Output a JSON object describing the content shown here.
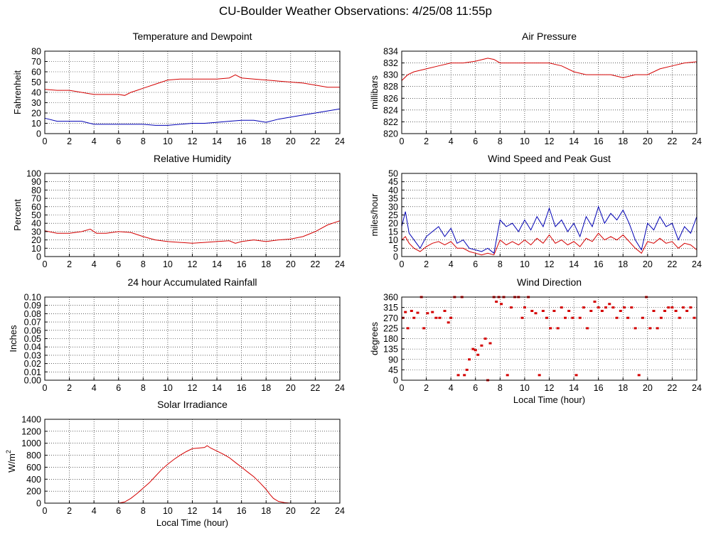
{
  "page_title": "CU-Boulder Weather Observations: 4/25/08 11:55p",
  "colors": {
    "red": "#d40000",
    "blue": "#0000b4"
  },
  "chart_data": [
    {
      "id": "temp",
      "type": "line",
      "title": "Temperature and Dewpoint",
      "ylabel": "Fahrenheit",
      "xlabel": "",
      "xlim": [
        0,
        24
      ],
      "ylim": [
        0,
        80
      ],
      "xticks": [
        0,
        2,
        4,
        6,
        8,
        10,
        12,
        14,
        16,
        18,
        20,
        22,
        24
      ],
      "yticks": [
        0,
        10,
        20,
        30,
        40,
        50,
        60,
        70,
        80
      ],
      "grid": true,
      "series": [
        {
          "color": "#d40000",
          "x": [
            0,
            1,
            2,
            3,
            4,
            5,
            6,
            6.5,
            7,
            7.5,
            8,
            9,
            10,
            11,
            12,
            13,
            14,
            15,
            15.5,
            16,
            17,
            18,
            19,
            20,
            21,
            22,
            23,
            24
          ],
          "y": [
            43,
            42,
            42,
            40,
            38,
            38,
            38,
            37,
            40,
            42,
            44,
            48,
            52,
            53,
            53,
            53,
            53,
            54,
            57,
            54,
            53,
            52,
            51,
            50,
            49,
            47,
            45,
            45
          ]
        },
        {
          "color": "#0000b4",
          "x": [
            0,
            1,
            2,
            3,
            4,
            5,
            6,
            7,
            8,
            9,
            10,
            11,
            12,
            13,
            14,
            15,
            16,
            17,
            18,
            19,
            20,
            21,
            22,
            23,
            24
          ],
          "y": [
            15,
            12,
            12,
            12,
            9,
            9,
            9,
            9,
            9,
            8,
            8,
            9,
            10,
            10,
            11,
            12,
            13,
            13,
            11,
            14,
            16,
            18,
            20,
            22,
            24
          ]
        }
      ]
    },
    {
      "id": "pressure",
      "type": "line",
      "title": "Air Pressure",
      "ylabel": "millibars",
      "xlabel": "",
      "xlim": [
        0,
        24
      ],
      "ylim": [
        820,
        834
      ],
      "xticks": [
        0,
        2,
        4,
        6,
        8,
        10,
        12,
        14,
        16,
        18,
        20,
        22,
        24
      ],
      "yticks": [
        820,
        822,
        824,
        826,
        828,
        830,
        832,
        834
      ],
      "grid": true,
      "series": [
        {
          "color": "#d40000",
          "x": [
            0,
            0.5,
            1,
            2,
            3,
            4,
            5,
            6,
            7,
            7.5,
            8,
            9,
            10,
            11,
            12,
            13,
            14,
            15,
            16,
            17,
            18,
            19,
            20,
            21,
            22,
            23,
            24
          ],
          "y": [
            829,
            830,
            830.5,
            831,
            831.5,
            832,
            832,
            832.3,
            832.8,
            832.6,
            832,
            832,
            832,
            832,
            832,
            831.5,
            830.5,
            830,
            830,
            830,
            829.5,
            830,
            830,
            831,
            831.5,
            832,
            832.2
          ]
        }
      ]
    },
    {
      "id": "humidity",
      "type": "line",
      "title": "Relative Humidity",
      "ylabel": "Percent",
      "xlabel": "",
      "xlim": [
        0,
        24
      ],
      "ylim": [
        0,
        100
      ],
      "xticks": [
        0,
        2,
        4,
        6,
        8,
        10,
        12,
        14,
        16,
        18,
        20,
        22,
        24
      ],
      "yticks": [
        0,
        10,
        20,
        30,
        40,
        50,
        60,
        70,
        80,
        90,
        100
      ],
      "grid": true,
      "series": [
        {
          "color": "#d40000",
          "x": [
            0,
            1,
            2,
            3,
            3.7,
            4.2,
            5,
            6,
            7,
            8,
            9,
            10,
            11,
            12,
            13,
            14,
            15,
            15.5,
            16,
            17,
            18,
            19,
            20,
            21,
            22,
            23,
            24
          ],
          "y": [
            31,
            28,
            28,
            30,
            33,
            28,
            28,
            30,
            29,
            24,
            20,
            18,
            17,
            16,
            17,
            18,
            19,
            16,
            18,
            20,
            18,
            20,
            21,
            24,
            30,
            38,
            43
          ]
        }
      ]
    },
    {
      "id": "wind",
      "type": "line",
      "title": "Wind Speed and Peak Gust",
      "ylabel": "miles/hour",
      "xlabel": "",
      "xlim": [
        0,
        24
      ],
      "ylim": [
        0,
        50
      ],
      "xticks": [
        0,
        2,
        4,
        6,
        8,
        10,
        12,
        14,
        16,
        18,
        20,
        22,
        24
      ],
      "yticks": [
        0,
        5,
        10,
        15,
        20,
        25,
        30,
        35,
        40,
        45,
        50
      ],
      "grid": true,
      "series": [
        {
          "color": "#0000b4",
          "x": [
            0,
            0.3,
            0.6,
            1,
            1.5,
            2,
            2.5,
            3,
            3.5,
            4,
            4.5,
            5,
            5.5,
            6,
            6.5,
            7,
            7.5,
            8,
            8.5,
            9,
            9.5,
            10,
            10.5,
            11,
            11.5,
            12,
            12.5,
            13,
            13.5,
            14,
            14.5,
            15,
            15.5,
            16,
            16.5,
            17,
            17.5,
            18,
            18.5,
            19,
            19.5,
            20,
            20.5,
            21,
            21.5,
            22,
            22.5,
            23,
            23.5,
            24
          ],
          "y": [
            18,
            27,
            14,
            10,
            5,
            12,
            15,
            18,
            12,
            17,
            8,
            10,
            5,
            4,
            3,
            5,
            2,
            22,
            18,
            20,
            15,
            22,
            16,
            24,
            18,
            29,
            18,
            22,
            15,
            20,
            12,
            24,
            18,
            30,
            20,
            26,
            22,
            28,
            20,
            10,
            4,
            20,
            16,
            24,
            18,
            20,
            10,
            18,
            14,
            24
          ]
        },
        {
          "color": "#d40000",
          "x": [
            0,
            0.3,
            0.6,
            1,
            1.5,
            2,
            2.5,
            3,
            3.5,
            4,
            4.5,
            5,
            5.5,
            6,
            6.5,
            7,
            7.5,
            8,
            8.5,
            9,
            9.5,
            10,
            10.5,
            11,
            11.5,
            12,
            12.5,
            13,
            13.5,
            14,
            14.5,
            15,
            15.5,
            16,
            16.5,
            17,
            17.5,
            18,
            18.5,
            19,
            19.5,
            20,
            20.5,
            21,
            21.5,
            22,
            22.5,
            23,
            23.5,
            24
          ],
          "y": [
            10,
            12,
            8,
            5,
            3,
            6,
            8,
            9,
            7,
            9,
            5,
            5,
            3,
            2,
            1,
            2,
            1,
            10,
            7,
            9,
            7,
            10,
            7,
            11,
            8,
            13,
            8,
            10,
            7,
            9,
            6,
            11,
            9,
            14,
            10,
            12,
            10,
            13,
            9,
            5,
            2,
            9,
            8,
            11,
            8,
            9,
            5,
            8,
            7,
            4
          ]
        }
      ]
    },
    {
      "id": "rain",
      "type": "line",
      "title": "24 hour Accumulated Rainfall",
      "ylabel": "Inches",
      "xlabel": "",
      "xlim": [
        0,
        24
      ],
      "ylim": [
        0,
        0.1
      ],
      "xticks": [
        0,
        2,
        4,
        6,
        8,
        10,
        12,
        14,
        16,
        18,
        20,
        22,
        24
      ],
      "yticks": [
        0,
        0.01,
        0.02,
        0.03,
        0.04,
        0.05,
        0.06,
        0.07,
        0.08,
        0.09,
        0.1
      ],
      "ytick_labels": [
        "0.00",
        "0.01",
        "0.02",
        "0.03",
        "0.04",
        "0.05",
        "0.06",
        "0.07",
        "0.08",
        "0.09",
        "0.10"
      ],
      "grid": true,
      "series": [
        {
          "color": "#d40000",
          "x": [
            0,
            24
          ],
          "y": [
            0,
            0
          ]
        }
      ]
    },
    {
      "id": "winddir",
      "type": "scatter",
      "title": "Wind Direction",
      "ylabel": "degrees",
      "xlabel": "Local Time (hour)",
      "xlim": [
        0,
        24
      ],
      "ylim": [
        0,
        360
      ],
      "xticks": [
        0,
        2,
        4,
        6,
        8,
        10,
        12,
        14,
        16,
        18,
        20,
        22,
        24
      ],
      "yticks": [
        0,
        45,
        90,
        135,
        180,
        225,
        270,
        315,
        360
      ],
      "grid": true,
      "series": [
        {
          "color": "#d40000",
          "x": [
            0.1,
            0.3,
            0.5,
            0.8,
            1.0,
            1.3,
            1.6,
            1.8,
            2.1,
            2.5,
            2.8,
            3.1,
            3.5,
            3.8,
            4.0,
            4.3,
            4.6,
            4.9,
            5.1,
            5.3,
            5.5,
            5.8,
            6.0,
            6.2,
            6.5,
            6.8,
            7.0,
            7.2,
            7.5,
            7.7,
            7.9,
            8.1,
            8.3,
            8.6,
            8.9,
            9.2,
            9.5,
            9.8,
            10.0,
            10.3,
            10.6,
            10.9,
            11.2,
            11.5,
            11.8,
            12.1,
            12.4,
            12.7,
            13.0,
            13.3,
            13.6,
            13.9,
            14.2,
            14.5,
            14.8,
            15.1,
            15.4,
            15.7,
            16.0,
            16.3,
            16.6,
            16.9,
            17.2,
            17.5,
            17.8,
            18.1,
            18.4,
            18.7,
            19.0,
            19.3,
            19.6,
            19.9,
            20.2,
            20.5,
            20.8,
            21.1,
            21.4,
            21.7,
            22.0,
            22.3,
            22.6,
            22.9,
            23.2,
            23.5,
            23.8
          ],
          "y": [
            270,
            295,
            225,
            300,
            270,
            292,
            360,
            225,
            290,
            295,
            270,
            270,
            300,
            250,
            270,
            360,
            22,
            360,
            22,
            45,
            90,
            135,
            130,
            110,
            150,
            180,
            0,
            160,
            360,
            340,
            360,
            330,
            360,
            22,
            315,
            360,
            360,
            270,
            315,
            360,
            300,
            290,
            22,
            300,
            270,
            225,
            300,
            225,
            315,
            270,
            300,
            270,
            22,
            270,
            315,
            225,
            300,
            340,
            315,
            300,
            315,
            330,
            315,
            270,
            300,
            315,
            270,
            315,
            225,
            22,
            270,
            360,
            225,
            300,
            225,
            270,
            300,
            315,
            315,
            300,
            270,
            315,
            300,
            315,
            270
          ]
        }
      ]
    },
    {
      "id": "solar",
      "type": "area",
      "title": "Solar Irradiance",
      "ylabel_main": "W/m",
      "ylabel_sup": "2",
      "xlabel": "Local Time (hour)",
      "xlim": [
        0,
        24
      ],
      "ylim": [
        0,
        1400
      ],
      "xticks": [
        0,
        2,
        4,
        6,
        8,
        10,
        12,
        14,
        16,
        18,
        20,
        22,
        24
      ],
      "yticks": [
        0,
        200,
        400,
        600,
        800,
        1000,
        1200,
        1400
      ],
      "grid": true,
      "series": [
        {
          "color": "#d40000",
          "x": [
            0,
            6,
            6.5,
            7,
            7.5,
            8,
            8.5,
            9,
            9.5,
            10,
            10.5,
            11,
            11.5,
            12,
            12.5,
            13,
            13.2,
            13.5,
            14,
            14.5,
            15,
            15.5,
            16,
            16.5,
            17,
            17.5,
            18,
            18.3,
            18.6,
            19,
            19.5,
            20,
            24
          ],
          "y": [
            0,
            0,
            20,
            80,
            160,
            250,
            340,
            450,
            560,
            650,
            730,
            800,
            860,
            910,
            920,
            930,
            960,
            920,
            870,
            820,
            760,
            680,
            600,
            520,
            440,
            340,
            230,
            150,
            80,
            30,
            10,
            0,
            0
          ]
        }
      ]
    }
  ]
}
